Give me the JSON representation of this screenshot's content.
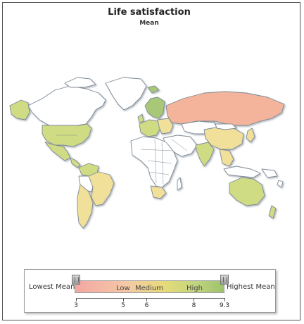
{
  "header": {
    "title": "Life satisfaction",
    "subtitle": "Mean"
  },
  "colors": {
    "no_data": "#ffffff",
    "low": "#f4b49c",
    "medium": "#f1e09a",
    "high": "#cfdc83",
    "highest": "#a9c877",
    "border": "#7f8a95",
    "ocean": "#ffffff"
  },
  "legend": {
    "lowest_label": "Lowest Mean",
    "highest_label": "Highest Mean",
    "bands": [
      {
        "label": "Low",
        "value": 4.5
      },
      {
        "label": "Medium",
        "value": 5.3
      },
      {
        "label": "High",
        "value": 7.0
      }
    ],
    "ticks": [
      {
        "value": 3,
        "label": "3"
      },
      {
        "value": 5,
        "label": "5"
      },
      {
        "value": 6,
        "label": "6"
      },
      {
        "value": 8,
        "label": "8"
      },
      {
        "value": 9.3,
        "label": "9.3"
      }
    ],
    "range": [
      3,
      9.3
    ],
    "handles": [
      3,
      9.3
    ]
  },
  "regions": [
    {
      "name": "greenland",
      "category": "no_data"
    },
    {
      "name": "canada",
      "category": "no_data"
    },
    {
      "name": "alaska",
      "category": "high"
    },
    {
      "name": "united-states",
      "category": "high"
    },
    {
      "name": "mexico",
      "category": "high"
    },
    {
      "name": "central-america",
      "category": "high"
    },
    {
      "name": "south-america-north",
      "category": "no_data"
    },
    {
      "name": "brazil",
      "category": "medium"
    },
    {
      "name": "argentina-chile",
      "category": "medium"
    },
    {
      "name": "colombia-venezuela",
      "category": "high"
    },
    {
      "name": "scandinavia",
      "category": "highest"
    },
    {
      "name": "western-europe",
      "category": "high"
    },
    {
      "name": "eastern-europe",
      "category": "medium"
    },
    {
      "name": "russia",
      "category": "low"
    },
    {
      "name": "kazakhstan",
      "category": "no_data"
    },
    {
      "name": "africa",
      "category": "no_data"
    },
    {
      "name": "south-africa",
      "category": "medium"
    },
    {
      "name": "middle-east",
      "category": "no_data"
    },
    {
      "name": "india",
      "category": "high"
    },
    {
      "name": "china",
      "category": "medium"
    },
    {
      "name": "southeast-asia",
      "category": "medium"
    },
    {
      "name": "japan",
      "category": "medium"
    },
    {
      "name": "australia",
      "category": "high"
    },
    {
      "name": "new-zealand",
      "category": "high"
    },
    {
      "name": "indonesia",
      "category": "no_data"
    }
  ]
}
